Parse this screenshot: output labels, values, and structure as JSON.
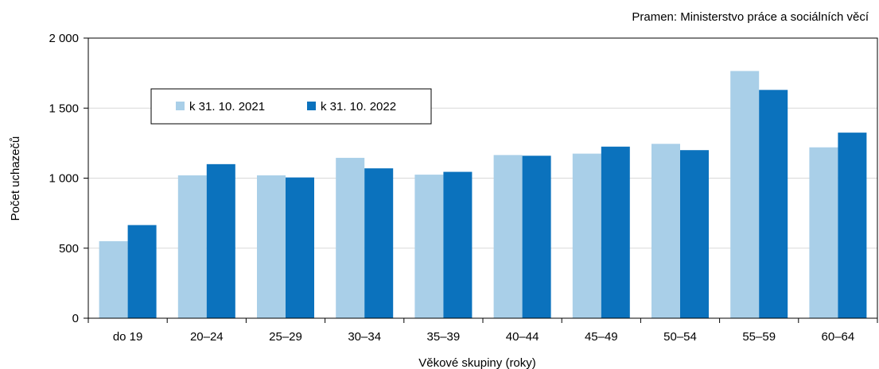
{
  "source_note": "Pramen: Ministerstvo práce a sociálních věcí",
  "colors": {
    "series_2021": "#a9cfe8",
    "series_2022": "#0b72bd",
    "axis": "#000000",
    "grid": "#d9d9d9"
  },
  "chart_data": {
    "type": "bar",
    "categories": [
      "do 19",
      "20–24",
      "25–29",
      "30–34",
      "35–39",
      "40–44",
      "45–49",
      "50–54",
      "55–59",
      "60–64"
    ],
    "series": [
      {
        "name": "k 31. 10. 2021",
        "values": [
          550,
          1020,
          1020,
          1145,
          1025,
          1165,
          1175,
          1245,
          1765,
          1220
        ]
      },
      {
        "name": "k 31. 10. 2022",
        "values": [
          665,
          1100,
          1005,
          1070,
          1045,
          1160,
          1225,
          1200,
          1630,
          1325
        ]
      }
    ],
    "xlabel": "Věkové skupiny (roky)",
    "ylabel": "Počet uchazečů",
    "ylim": [
      0,
      2000
    ],
    "yticks": [
      0,
      500,
      1000,
      1500,
      2000
    ],
    "ytick_labels": [
      "0",
      "500",
      "1 000",
      "1 500",
      "2 000"
    ],
    "grid": true,
    "legend_position": "top-left, inside plot"
  }
}
